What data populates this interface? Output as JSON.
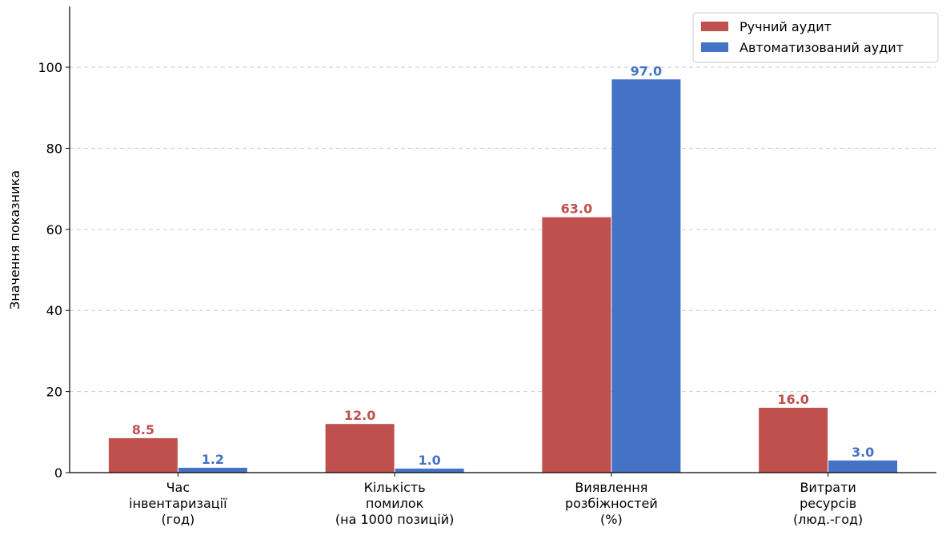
{
  "chart_data": {
    "type": "bar",
    "title": "",
    "xlabel": "",
    "ylabel": "Значення показника",
    "ylim": [
      0,
      115
    ],
    "yticks": [
      0,
      20,
      40,
      60,
      80,
      100
    ],
    "grid": true,
    "legend_position": "top-right",
    "categories": [
      [
        "Час",
        "інвентаризації",
        "(год)"
      ],
      [
        "Кількість",
        "помилок",
        "(на 1000 позицій)"
      ],
      [
        "Виявлення",
        "розбіжностей",
        "(%)"
      ],
      [
        "Витрати",
        "ресурсів",
        "(люд.-год)"
      ]
    ],
    "series": [
      {
        "name": "Ручний аудит",
        "color": "#c0504d",
        "values": [
          8.5,
          12.0,
          63.0,
          16.0
        ],
        "labels": [
          "8.5",
          "12.0",
          "63.0",
          "16.0"
        ]
      },
      {
        "name": "Автоматизований аудит",
        "color": "#4472c4",
        "values": [
          1.2,
          1.0,
          97.0,
          3.0
        ],
        "labels": [
          "1.2",
          "1.0",
          "97.0",
          "3.0"
        ]
      }
    ]
  }
}
